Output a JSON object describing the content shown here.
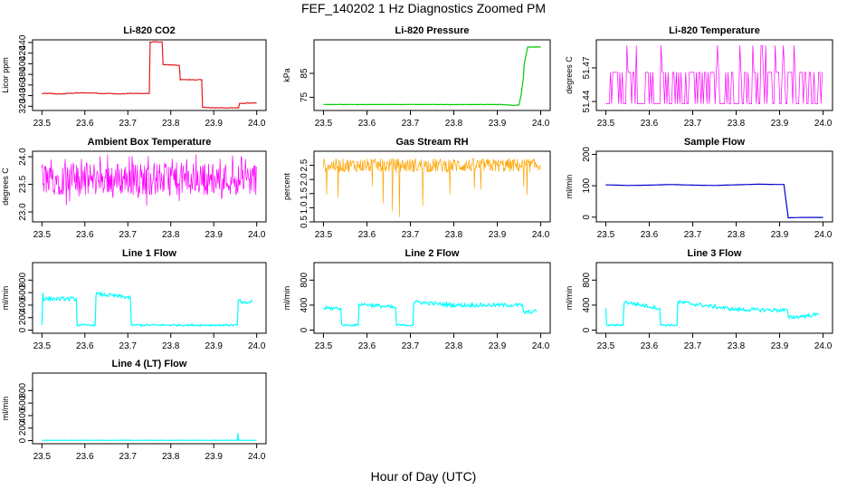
{
  "figure": {
    "title": "FEF_140202  1 Hz Diagnostics Zoomed PM",
    "xlabel": "Hour of Day (UTC)"
  },
  "chart_data": [
    {
      "type": "line",
      "title": "Li-820 CO2",
      "ylabel": "Licor ppm",
      "color": "#e31a1c",
      "xlim": [
        23.5,
        24.0
      ],
      "ylim": [
        312,
        445
      ],
      "xticks": [
        "23.5",
        "23.6",
        "23.7",
        "23.8",
        "23.9",
        "24.0"
      ],
      "yticks": [
        {
          "v": 320,
          "label": "320"
        },
        {
          "v": 340,
          "label": "340"
        },
        {
          "v": 360,
          "label": "360"
        },
        {
          "v": 380,
          "label": "380"
        },
        {
          "v": 400,
          "label": "400"
        },
        {
          "v": 420,
          "label": "420"
        },
        {
          "v": 440,
          "label": "440"
        }
      ],
      "series": [
        {
          "x": [
            23.5,
            23.52,
            23.54,
            23.56,
            23.58,
            23.6,
            23.62,
            23.64,
            23.66,
            23.68,
            23.7,
            23.72,
            23.75,
            23.752,
            23.76,
            23.78,
            23.782,
            23.8,
            23.82,
            23.822,
            23.84,
            23.86,
            23.872,
            23.874,
            23.9,
            23.92,
            23.94,
            23.958,
            23.96,
            23.98,
            24.0
          ],
          "y": [
            344,
            344,
            343,
            344,
            345,
            345,
            345,
            344,
            344,
            343,
            344,
            344,
            344,
            441,
            441,
            441,
            398,
            398,
            397,
            370,
            370,
            370,
            370,
            318,
            317,
            317,
            317,
            317,
            325,
            326,
            326
          ]
        }
      ]
    },
    {
      "type": "line",
      "title": "Li-820 Pressure",
      "ylabel": "kPa",
      "color": "#00cc00",
      "xlim": [
        23.5,
        24.0
      ],
      "ylim": [
        69.5,
        99
      ],
      "xticks": [
        "23.5",
        "23.6",
        "23.7",
        "23.8",
        "23.9",
        "24.0"
      ],
      "yticks": [
        {
          "v": 75,
          "label": "75"
        },
        {
          "v": 85,
          "label": "85"
        }
      ],
      "series": [
        {
          "x": [
            23.5,
            23.6,
            23.7,
            23.8,
            23.9,
            23.91,
            23.94,
            23.95,
            23.955,
            23.96,
            23.962,
            23.97,
            23.98,
            24.0
          ],
          "y": [
            72,
            72,
            72,
            72,
            72,
            72,
            71.6,
            71.8,
            76,
            83,
            89,
            96,
            96,
            96
          ]
        }
      ]
    },
    {
      "type": "line",
      "title": "Li-820 Temperature",
      "ylabel": "degrees C",
      "color": "#ff00ff",
      "xlim": [
        23.5,
        24.0
      ],
      "ylim": [
        51.432,
        51.495
      ],
      "xticks": [
        "23.5",
        "23.6",
        "23.7",
        "23.8",
        "23.9",
        "24.0"
      ],
      "yticks": [
        {
          "v": 51.44,
          "label": "51.44"
        },
        {
          "v": 51.47,
          "label": "51.47"
        }
      ],
      "series": [
        {
          "x": [
            23.5,
            23.51,
            23.52,
            23.55,
            23.6,
            23.65,
            23.7,
            23.75,
            23.8,
            23.85,
            23.9,
            23.95,
            24.0
          ],
          "y": [
            51.438,
            51.466,
            51.438,
            51.466,
            51.438,
            51.466,
            51.49,
            51.438,
            51.466,
            51.49,
            51.438,
            51.466,
            51.438
          ]
        }
      ]
    },
    {
      "type": "line",
      "title": "Ambient Box Temperature",
      "ylabel": "degrees C",
      "color": "#ff00ff",
      "xlim": [
        23.5,
        24.0
      ],
      "ylim": [
        22.82,
        24.1
      ],
      "xticks": [
        "23.5",
        "23.6",
        "23.7",
        "23.8",
        "23.9",
        "24.0"
      ],
      "yticks": [
        {
          "v": 23.0,
          "label": "23.0"
        },
        {
          "v": 23.5,
          "label": "23.5"
        },
        {
          "v": 24.0,
          "label": "24.0"
        }
      ],
      "series": [
        {
          "x": [
            23.5,
            23.6,
            23.7,
            23.8,
            23.9,
            24.0
          ],
          "y": [
            23.6,
            23.6,
            23.55,
            23.6,
            23.55,
            23.6
          ]
        }
      ]
    },
    {
      "type": "line",
      "title": "Gas Stream RH",
      "ylabel": "percent",
      "color": "#ffa500",
      "xlim": [
        23.5,
        24.0
      ],
      "ylim": [
        0.5,
        3.0
      ],
      "xticks": [
        "23.5",
        "23.6",
        "23.7",
        "23.8",
        "23.9",
        "24.0"
      ],
      "yticks": [
        {
          "v": 0.5,
          "label": "0.5"
        },
        {
          "v": 1.0,
          "label": "1.0"
        },
        {
          "v": 1.5,
          "label": "1.5"
        },
        {
          "v": 2.0,
          "label": "2.0"
        },
        {
          "v": 2.5,
          "label": "2.5"
        }
      ],
      "series": [
        {
          "x": [
            23.5,
            23.6,
            23.7,
            23.8,
            23.9,
            24.0
          ],
          "y": [
            2.5,
            2.5,
            2.5,
            2.5,
            2.5,
            2.5
          ]
        }
      ]
    },
    {
      "type": "line",
      "title": "Sample Flow",
      "ylabel": "ml/min",
      "color": "#0000cc",
      "xlim": [
        23.5,
        24.0
      ],
      "ylim": [
        -15,
        210
      ],
      "xticks": [
        "23.5",
        "23.6",
        "23.7",
        "23.8",
        "23.9",
        "24.0"
      ],
      "yticks": [
        {
          "v": 0,
          "label": "0"
        },
        {
          "v": 100,
          "label": "100"
        },
        {
          "v": 200,
          "label": "200"
        }
      ],
      "series": [
        {
          "x": [
            23.5,
            23.55,
            23.6,
            23.65,
            23.7,
            23.75,
            23.8,
            23.85,
            23.9,
            23.91,
            23.915,
            23.92,
            23.95,
            24.0
          ],
          "y": [
            103,
            101,
            102,
            104,
            102,
            101,
            103,
            105,
            104,
            104,
            50,
            -2,
            -1,
            -1
          ]
        }
      ]
    },
    {
      "type": "line",
      "title": "Line 1 Flow",
      "ylabel": "ml/min",
      "color": "#00ffff",
      "xlim": [
        23.5,
        24.0
      ],
      "ylim": [
        -50,
        1080
      ],
      "xticks": [
        "23.5",
        "23.6",
        "23.7",
        "23.8",
        "23.9",
        "24.0"
      ],
      "yticks": [
        {
          "v": 0,
          "label": "0"
        },
        {
          "v": 200,
          "label": "200"
        },
        {
          "v": 400,
          "label": "400"
        },
        {
          "v": 600,
          "label": "600"
        },
        {
          "v": 800,
          "label": "800"
        }
      ],
      "series": [
        {
          "x": [
            23.5,
            23.502,
            23.504,
            23.58,
            23.582,
            23.624,
            23.626,
            23.706,
            23.708,
            23.9,
            23.955,
            23.957,
            23.97,
            23.99
          ],
          "y": [
            80,
            600,
            500,
            500,
            80,
            80,
            580,
            520,
            80,
            80,
            80,
            480,
            420,
            460
          ]
        }
      ]
    },
    {
      "type": "line",
      "title": "Line 2 Flow",
      "ylabel": "ml/min",
      "color": "#00ffff",
      "xlim": [
        23.5,
        24.0
      ],
      "ylim": [
        -50,
        1080
      ],
      "xticks": [
        "23.5",
        "23.6",
        "23.7",
        "23.8",
        "23.9",
        "24.0"
      ],
      "yticks": [
        {
          "v": 0,
          "label": "0"
        },
        {
          "v": 400,
          "label": "400"
        },
        {
          "v": 800,
          "label": "800"
        }
      ],
      "series": [
        {
          "x": [
            23.5,
            23.54,
            23.542,
            23.58,
            23.582,
            23.666,
            23.668,
            23.706,
            23.708,
            23.8,
            23.9,
            23.958,
            23.96,
            23.99
          ],
          "y": [
            350,
            350,
            80,
            80,
            420,
            360,
            80,
            80,
            450,
            400,
            400,
            400,
            280,
            300
          ]
        }
      ]
    },
    {
      "type": "line",
      "title": "Line 3 Flow",
      "ylabel": "ml/min",
      "color": "#00ffff",
      "xlim": [
        23.5,
        24.0
      ],
      "ylim": [
        -50,
        1080
      ],
      "xticks": [
        "23.5",
        "23.6",
        "23.7",
        "23.8",
        "23.9",
        "24.0"
      ],
      "yticks": [
        {
          "v": 0,
          "label": "0"
        },
        {
          "v": 400,
          "label": "400"
        },
        {
          "v": 800,
          "label": "800"
        }
      ],
      "series": [
        {
          "x": [
            23.5,
            23.502,
            23.504,
            23.54,
            23.542,
            23.624,
            23.626,
            23.664,
            23.666,
            23.8,
            23.9,
            23.918,
            23.92,
            23.99
          ],
          "y": [
            350,
            80,
            80,
            80,
            450,
            350,
            80,
            80,
            450,
            330,
            320,
            320,
            200,
            250
          ]
        }
      ]
    },
    {
      "type": "line",
      "title": "Line 4 (LT) Flow",
      "ylabel": "ml/min",
      "color": "#00ffff",
      "xlim": [
        23.5,
        24.0
      ],
      "ylim": [
        -50,
        1080
      ],
      "xticks": [
        "23.5",
        "23.6",
        "23.7",
        "23.8",
        "23.9",
        "24.0"
      ],
      "yticks": [
        {
          "v": 0,
          "label": "0"
        },
        {
          "v": 200,
          "label": "200"
        },
        {
          "v": 400,
          "label": "400"
        },
        {
          "v": 600,
          "label": "600"
        },
        {
          "v": 800,
          "label": "800"
        }
      ],
      "series": [
        {
          "x": [
            23.5,
            23.6,
            23.7,
            23.8,
            23.9,
            23.955,
            23.956,
            23.957,
            23.958,
            24.0
          ],
          "y": [
            5,
            5,
            5,
            5,
            5,
            5,
            120,
            40,
            5,
            5
          ]
        }
      ]
    }
  ]
}
